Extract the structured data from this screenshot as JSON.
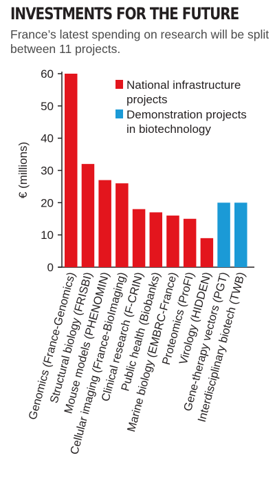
{
  "title": "INVESTMENTS FOR THE FUTURE",
  "subtitle": "France’s latest spending on research will be split between 11 projects.",
  "colors": {
    "national": "#e3151d",
    "demonstration": "#1b9ad6"
  },
  "chart_data": {
    "type": "bar",
    "title": "",
    "xlabel": "",
    "ylabel": "€ (millions)",
    "ylim": [
      0,
      60
    ],
    "yticks": [
      0,
      10,
      20,
      30,
      40,
      50,
      60
    ],
    "grid": false,
    "legend_position": "top-right",
    "categories": [
      "Genomics (France-Genomics)",
      "Structural biology (FRISBI)",
      "Mouse models (PHENOMIN)",
      "Cellular imaging (France-BioImaging)",
      "Clinical research (F-CRIN)",
      "Public health (Biobanks)",
      "Marine biology (EMBRC-France)",
      "Proteomics (ProFI)",
      "Virology (HIDDEN)",
      "Gene-therapy vectors (PGT)",
      "Interdisciplinary biotech (TWB)"
    ],
    "series": [
      {
        "name": "National infrastructure projects",
        "values": [
          60,
          32,
          27,
          26,
          18,
          17,
          16,
          15,
          9,
          null,
          null
        ]
      },
      {
        "name": "Demonstration projects in biotechnology",
        "values": [
          null,
          null,
          null,
          null,
          null,
          null,
          null,
          null,
          null,
          20,
          20
        ]
      }
    ],
    "legend": [
      {
        "lines": [
          "National infrastructure",
          "projects"
        ]
      },
      {
        "lines": [
          "Demonstration projects",
          "in biotechnology"
        ]
      }
    ]
  }
}
